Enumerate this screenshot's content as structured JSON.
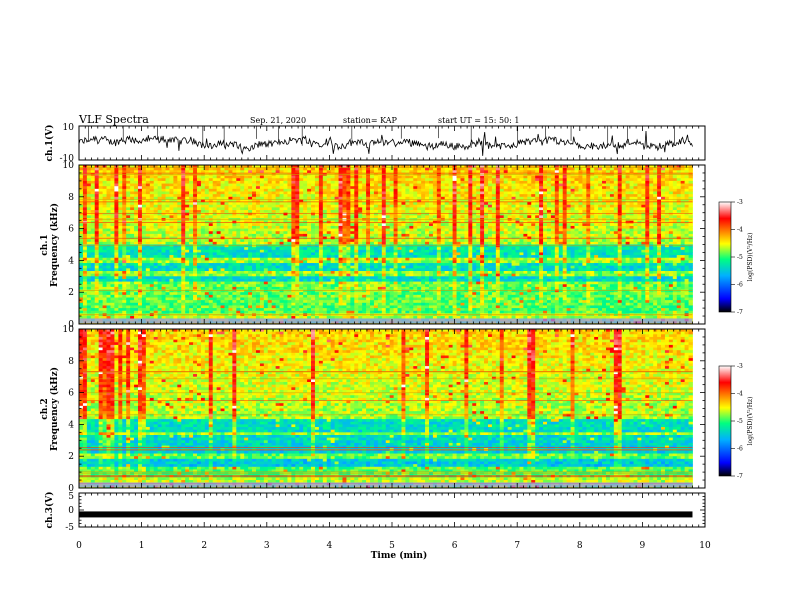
{
  "header": {
    "title": "VLF Spectra",
    "date": "Sep. 21, 2020",
    "station": "station= KAP",
    "start": "start  UT =   15: 50: 1"
  },
  "chart_data": {
    "type": "heatmap",
    "title": "VLF Spectra",
    "xlabel": "Time (min)",
    "xlim": [
      0,
      10
    ],
    "x_ticks": [
      0,
      1,
      2,
      3,
      4,
      5,
      6,
      7,
      8,
      9,
      10
    ],
    "panels": [
      {
        "name": "ch.1(V)",
        "kind": "waveform",
        "ylabel": "ch.1(V)",
        "ylim": [
          -10,
          10
        ],
        "y_ticks": [
          10,
          -10
        ],
        "data_end_min": 9.8
      },
      {
        "name": "ch.1",
        "kind": "spectrogram",
        "ylabel_top": "ch.1",
        "ylabel": "Frequency (kHz)",
        "ylim": [
          0,
          10
        ],
        "y_ticks": [
          0,
          2,
          4,
          6,
          8,
          10
        ],
        "data_end_min": 9.8,
        "colorbar": {
          "label": "log(PSD)(V²/Hz)",
          "range": [
            -7,
            -3
          ],
          "ticks": [
            -3,
            -4,
            -5,
            -6,
            -7
          ]
        },
        "quiet_bands_khz": [
          [
            2.6,
            3.0
          ],
          [
            3.3,
            3.9
          ],
          [
            4.2,
            5.0
          ]
        ]
      },
      {
        "name": "ch.2",
        "kind": "spectrogram",
        "ylabel_top": "ch.2",
        "ylabel": "Frequency (kHz)",
        "ylim": [
          0,
          10
        ],
        "y_ticks": [
          0,
          2,
          4,
          6,
          8,
          10
        ],
        "data_end_min": 9.8,
        "colorbar": {
          "label": "log(PSD)(V²/Hz)",
          "range": [
            -7,
            -3
          ],
          "ticks": [
            -3,
            -4,
            -5,
            -6,
            -7
          ]
        },
        "quiet_bands_khz": [
          [
            1.4,
            1.8
          ],
          [
            2.1,
            3.3
          ],
          [
            3.5,
            4.3
          ]
        ]
      },
      {
        "name": "ch.3(V)",
        "kind": "waveform",
        "ylabel": "ch.3(V)",
        "ylim": [
          -5,
          5
        ],
        "y_ticks": [
          5,
          0,
          -5
        ],
        "level_v": -1.3,
        "data_end_min": 9.8
      }
    ]
  },
  "colors": {
    "axis": "#000000",
    "trace": "#000000",
    "scale": [
      "#000000",
      "#0000ff",
      "#00b0ff",
      "#00ff80",
      "#ffff00",
      "#ff0000",
      "#ffffff"
    ]
  }
}
